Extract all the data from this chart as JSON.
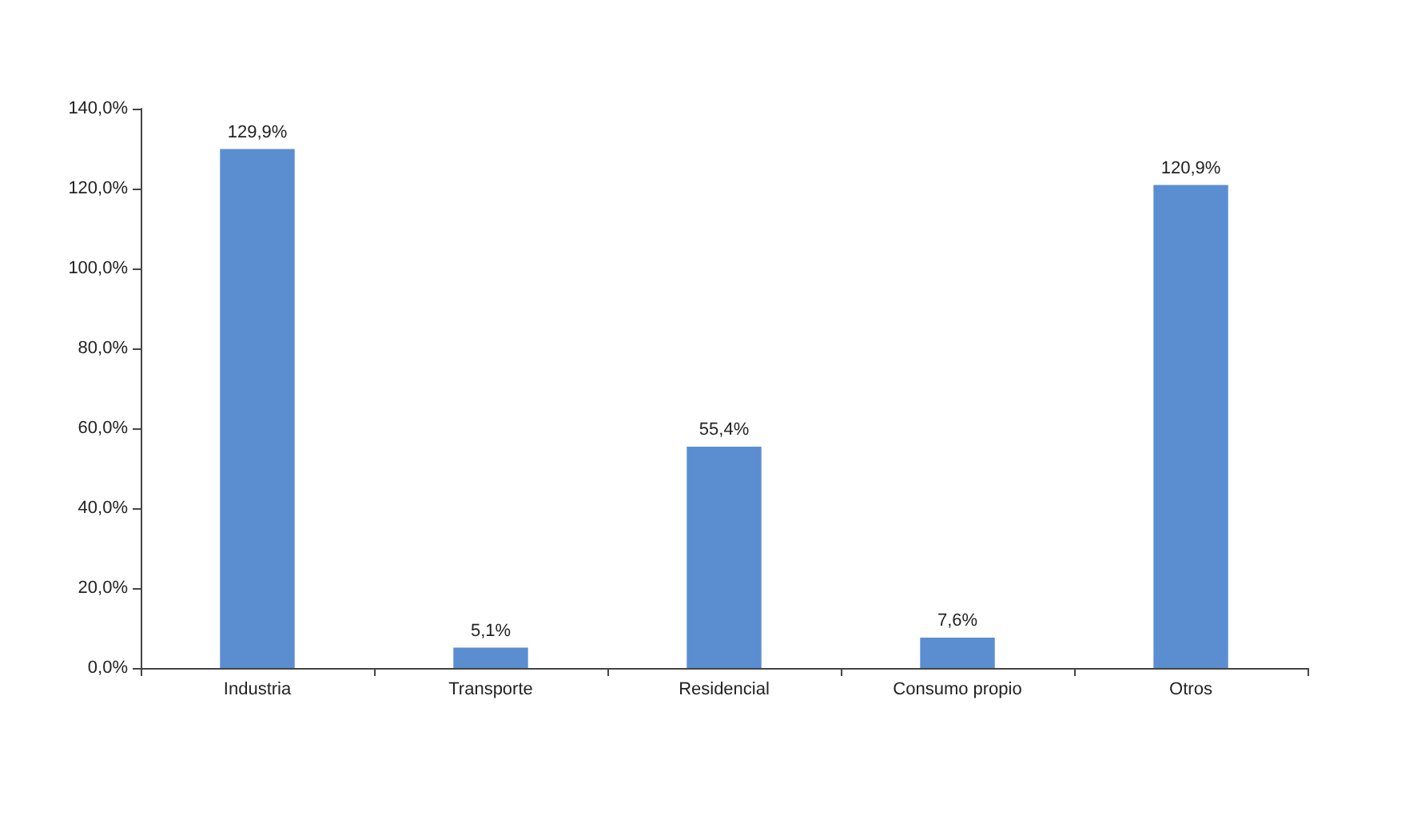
{
  "chart_data": {
    "type": "bar",
    "categories": [
      "Industria",
      "Transporte",
      "Residencial",
      "Consumo propio",
      "Otros"
    ],
    "values": [
      129.9,
      5.1,
      55.4,
      7.6,
      120.9
    ],
    "value_labels": [
      "129,9%",
      "5,1%",
      "55,4%",
      "7,6%",
      "120,9%"
    ],
    "color": "#5b8ed0",
    "ylim": [
      0,
      140
    ],
    "yticks": [
      {
        "value": 0,
        "label": "0,0%"
      },
      {
        "value": 20,
        "label": "20,0%"
      },
      {
        "value": 40,
        "label": "40,0%"
      },
      {
        "value": 60,
        "label": "60,0%"
      },
      {
        "value": 80,
        "label": "80,0%"
      },
      {
        "value": 100,
        "label": "100,0%"
      },
      {
        "value": 120,
        "label": "120,0%"
      },
      {
        "value": 140,
        "label": "140,0%"
      }
    ],
    "grid": false
  }
}
